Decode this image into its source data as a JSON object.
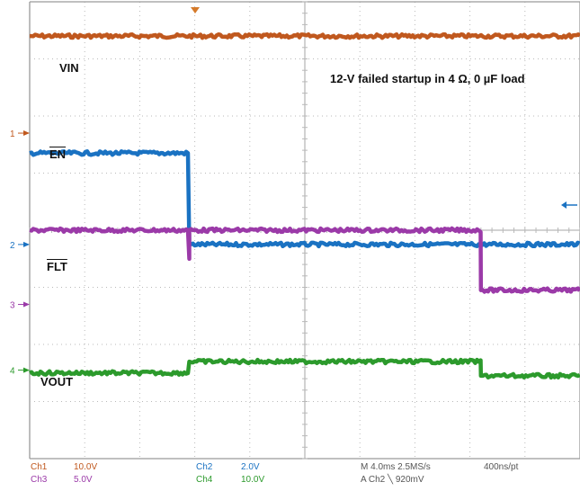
{
  "title": "12-V failed startup in 4 Ω, 0 µF load",
  "colors": {
    "ch1": "#c0581e",
    "ch2": "#1a72c2",
    "ch3": "#9b3aa8",
    "ch4": "#2c9a2c",
    "grid": "#b9b9b9",
    "frame": "#9a9a9a"
  },
  "status": {
    "ch1_name": "Ch1",
    "ch1_scale": "10.0V",
    "ch3_name": "Ch3",
    "ch3_scale": "5.0V",
    "ch2_name": "Ch2",
    "ch2_scale": "2.0V",
    "ch4_name": "Ch4",
    "ch4_scale": "10.0V",
    "timebase": "M 4.0ms 2.5MS/s",
    "resolution": "400ns/pt",
    "trigger": "A  Ch2  ╲  920mV"
  },
  "chart_data": {
    "type": "line",
    "title": "12-V failed startup in 4 Ω, 0 µF load",
    "xlabel": "",
    "ylabel": "",
    "grid": true,
    "xlim": [
      0,
      10
    ],
    "ylim": [
      0,
      8
    ],
    "ground_markers": [
      {
        "label": "1",
        "y": 5.7,
        "color": "#c0581e"
      },
      {
        "label": "2",
        "y": 3.75,
        "color": "#1a72c2"
      },
      {
        "label": "3",
        "y": 2.7,
        "color": "#9b3aa8"
      },
      {
        "label": "4",
        "y": 1.55,
        "color": "#2c9a2c"
      }
    ],
    "series": [
      {
        "name": "VIN",
        "name_overline": false,
        "color": "#c0581e",
        "label_pos": [
          0.55,
          7.15
        ],
        "x": [
          0,
          10
        ],
        "y": [
          7.4,
          7.4
        ]
      },
      {
        "name": "EN",
        "name_overline": true,
        "color": "#1a72c2",
        "label_pos": [
          0.4,
          5.1
        ],
        "x": [
          0,
          2.9,
          2.9,
          10
        ],
        "y": [
          5.35,
          5.35,
          3.75,
          3.75
        ]
      },
      {
        "name": "FLT",
        "name_overline": true,
        "color": "#9b3aa8",
        "label_pos": [
          0.4,
          3.55
        ],
        "x": [
          0,
          2.9,
          2.9,
          2.9,
          8.2,
          8.2,
          10
        ],
        "y": [
          4.0,
          4.0,
          3.5,
          4.0,
          4.0,
          2.95,
          2.95
        ]
      },
      {
        "name": "VOUT",
        "name_overline": false,
        "color": "#2c9a2c",
        "label_pos": [
          0.35,
          1.65
        ],
        "x": [
          0,
          2.9,
          2.9,
          8.2,
          8.2,
          10
        ],
        "y": [
          1.5,
          1.5,
          1.7,
          1.7,
          1.45,
          1.45
        ]
      }
    ]
  }
}
